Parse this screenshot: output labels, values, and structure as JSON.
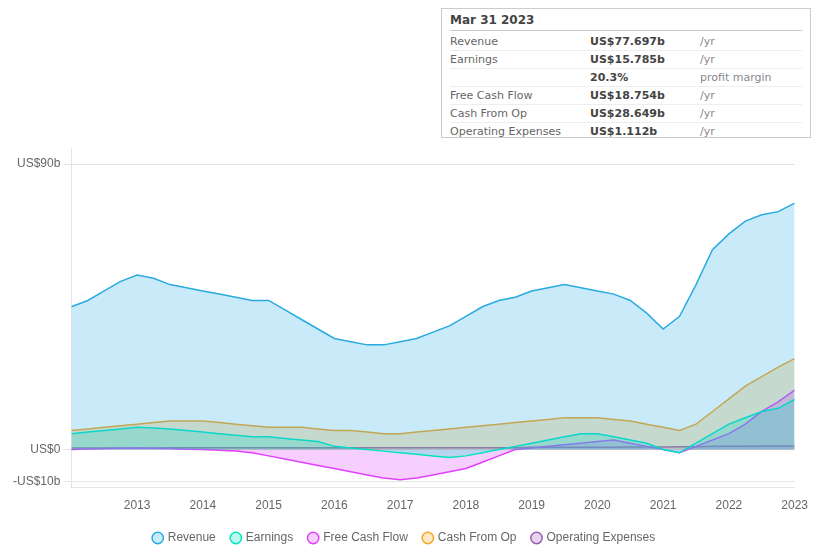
{
  "chart_data": {
    "type": "area",
    "title": "Mar 31 2023",
    "annotations": [
      [
        "Revenue",
        "US$77.697b",
        "/yr"
      ],
      [
        "Earnings",
        "US$15.785b",
        "/yr"
      ],
      [
        "",
        "20.3%",
        "profit margin"
      ],
      [
        "Free Cash Flow",
        "US$18.754b",
        "/yr"
      ],
      [
        "Cash From Op",
        "US$28.649b",
        "/yr"
      ],
      [
        "Operating Expenses",
        "US$1.112b",
        "/yr"
      ]
    ],
    "x": [
      2012,
      2012.25,
      2012.5,
      2012.75,
      2013,
      2013.25,
      2013.5,
      2013.75,
      2014,
      2014.25,
      2014.5,
      2014.75,
      2015,
      2015.25,
      2015.5,
      2015.75,
      2016,
      2016.25,
      2016.5,
      2016.75,
      2017,
      2017.25,
      2017.5,
      2017.75,
      2018,
      2018.25,
      2018.5,
      2018.75,
      2019,
      2019.25,
      2019.5,
      2019.75,
      2020,
      2020.25,
      2020.5,
      2020.75,
      2021,
      2021.25,
      2021.5,
      2021.75,
      2022,
      2022.25,
      2022.5,
      2022.75,
      2023
    ],
    "series": [
      {
        "name": "Revenue",
        "color": "#29abe2",
        "values": [
          45,
          47,
          50,
          53,
          55,
          54,
          52,
          51,
          50,
          49,
          48,
          47,
          47,
          44,
          41,
          38,
          35,
          34,
          33,
          33,
          34,
          35,
          37,
          39,
          42,
          45,
          47,
          48,
          50,
          51,
          52,
          51,
          50,
          49,
          47,
          43,
          38,
          42,
          52,
          63,
          68,
          72,
          74,
          75,
          77.7
        ]
      },
      {
        "name": "Earnings",
        "color": "#00e5c0",
        "values": [
          5,
          5.5,
          6,
          6.5,
          7,
          6.8,
          6.5,
          6,
          5.5,
          5,
          4.5,
          4,
          4,
          3.5,
          3,
          2.5,
          1,
          0.5,
          0,
          -0.5,
          -1,
          -1.5,
          -2,
          -2.5,
          -2,
          -1,
          0,
          1,
          2,
          3,
          4,
          5,
          5,
          4,
          3,
          2,
          0,
          -1,
          2,
          5,
          8,
          10,
          12,
          13,
          15.785
        ]
      },
      {
        "name": "Free Cash Flow",
        "color": "#e040fb",
        "values": [
          0,
          0.2,
          0.3,
          0.4,
          0.5,
          0.4,
          0.3,
          0.1,
          0,
          -0.2,
          -0.5,
          -1,
          -2,
          -3,
          -4,
          -5,
          -6,
          -7,
          -8,
          -9,
          -9.5,
          -9,
          -8,
          -7,
          -6,
          -4,
          -2,
          0,
          0.5,
          1,
          1.5,
          2,
          2.5,
          3,
          2,
          1,
          0,
          -1,
          1,
          3,
          5,
          8,
          12,
          15,
          18.754
        ]
      },
      {
        "name": "Cash From Op",
        "color": "#f5a623",
        "values": [
          6,
          6.5,
          7,
          7.5,
          8,
          8.5,
          9,
          9,
          9,
          8.5,
          8,
          7.5,
          7,
          7,
          7,
          6.5,
          6,
          6,
          5.5,
          5,
          5,
          5.5,
          6,
          6.5,
          7,
          7.5,
          8,
          8.5,
          9,
          9.5,
          10,
          10,
          10,
          9.5,
          9,
          8,
          7,
          6,
          8,
          12,
          16,
          20,
          23,
          26,
          28.649
        ]
      },
      {
        "name": "Operating Expenses",
        "color": "#9b59b6",
        "values": [
          0.5,
          0.5,
          0.5,
          0.5,
          0.5,
          0.5,
          0.6,
          0.6,
          0.6,
          0.6,
          0.6,
          0.6,
          0.6,
          0.6,
          0.6,
          0.6,
          0.6,
          0.6,
          0.6,
          0.6,
          0.6,
          0.6,
          0.6,
          0.6,
          0.6,
          0.6,
          0.6,
          0.6,
          0.7,
          0.7,
          0.7,
          0.7,
          0.7,
          0.7,
          0.8,
          0.8,
          0.8,
          0.9,
          0.9,
          1.0,
          1.0,
          1.0,
          1.1,
          1.1,
          1.112
        ]
      }
    ],
    "xlim": [
      2012,
      2023
    ],
    "xticks": [
      2013,
      2014,
      2015,
      2016,
      2017,
      2018,
      2019,
      2020,
      2021,
      2022,
      2023
    ],
    "ylim": [
      -12,
      95
    ],
    "yticks": [
      {
        "value": -10,
        "label": "-US$10b"
      },
      {
        "value": 0,
        "label": "US$0"
      },
      {
        "value": 90,
        "label": "US$90b"
      }
    ],
    "grid": true,
    "legend": "bottom"
  }
}
